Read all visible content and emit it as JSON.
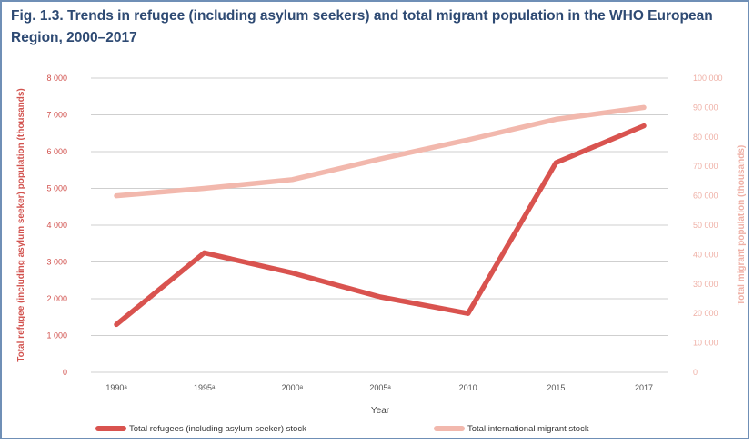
{
  "figure": {
    "title": "Fig. 1.3. Trends in refugee (including asylum seekers) and total migrant population in the WHO European Region, 2000–2017"
  },
  "chart_data": {
    "type": "line",
    "title": "Fig. 1.3. Trends in refugee (including asylum seekers) and total migrant population in the WHO European Region, 2000–2017",
    "xlabel": "Year",
    "ylabel": "Total refugee (including asylum seeker) population (thousands)",
    "y2label": "Total migrant population (thousands)",
    "categories": [
      "1990",
      "1995",
      "2000",
      "2005",
      "2010",
      "2015",
      "2017"
    ],
    "x_tick_labels": [
      "1990ᵃ",
      "1995ᵃ",
      "2000ᵃ",
      "2005ᵃ",
      "2010",
      "2015",
      "2017"
    ],
    "ylim": [
      0,
      8000
    ],
    "y_ticks": [
      "0",
      "1 000",
      "2 000",
      "3 000",
      "4 000",
      "5 000",
      "6 000",
      "7 000",
      "8 000"
    ],
    "y2lim": [
      0,
      100000
    ],
    "y2_ticks": [
      "0",
      "10 000",
      "20 000",
      "30 000",
      "40 000",
      "50 000",
      "60 000",
      "70 000",
      "80 000",
      "90 000",
      "100 000"
    ],
    "grid": "horizontal",
    "legend_position": "bottom",
    "series": [
      {
        "name": "Total refugees (including asylum seeker) stock",
        "axis": "left",
        "color": "#d9534f",
        "values": [
          1300,
          3250,
          2700,
          2050,
          1600,
          5700,
          6700
        ]
      },
      {
        "name": "Total international migrant stock",
        "axis": "right",
        "color": "#f2b8ad",
        "values": [
          60000,
          62500,
          65500,
          72500,
          79000,
          86000,
          90000
        ]
      }
    ]
  }
}
